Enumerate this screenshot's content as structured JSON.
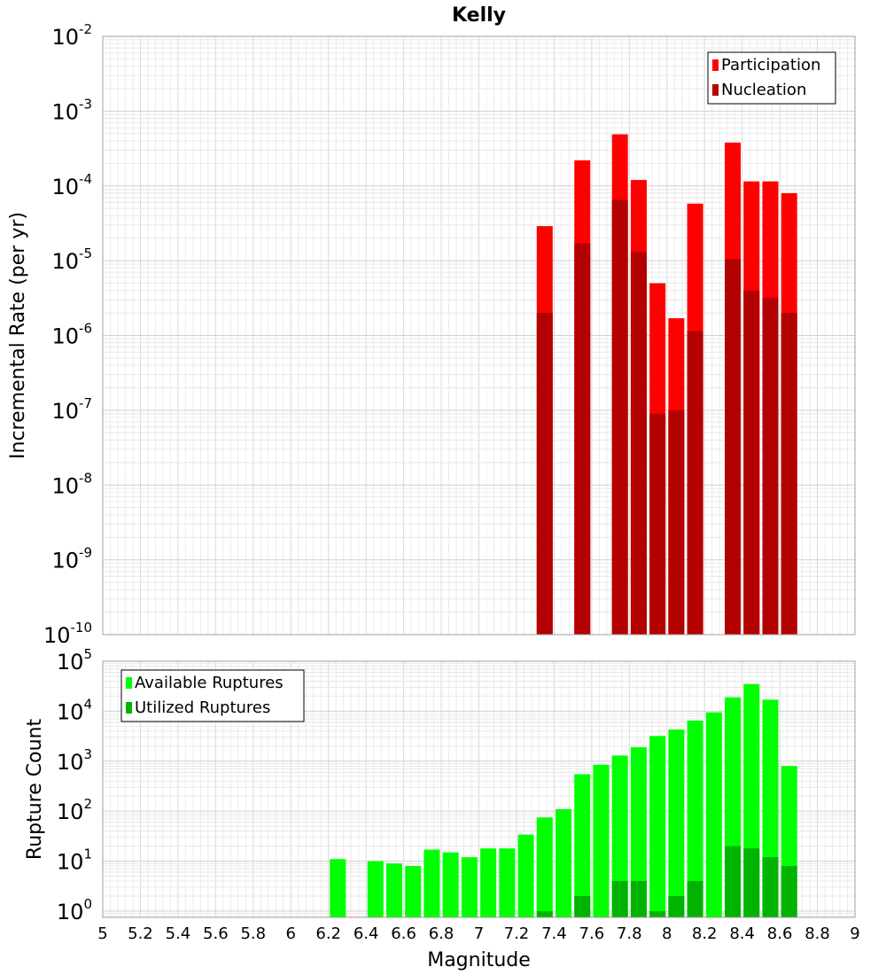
{
  "chart_data": [
    {
      "type": "bar",
      "title": "Kelly",
      "xlabel": "Magnitude",
      "ylabel": "Incremental Rate (per yr)",
      "yscale": "log",
      "ylim": [
        1e-10,
        0.01
      ],
      "xlim": [
        5,
        9
      ],
      "legend_position": "top-right",
      "series": [
        {
          "name": "Participation",
          "color": "#ff0000",
          "points": [
            {
              "x": 7.35,
              "y": 2.9e-05
            },
            {
              "x": 7.55,
              "y": 0.00022
            },
            {
              "x": 7.75,
              "y": 0.00049
            },
            {
              "x": 7.85,
              "y": 0.00012
            },
            {
              "x": 7.95,
              "y": 5e-06
            },
            {
              "x": 8.05,
              "y": 1.7e-06
            },
            {
              "x": 8.15,
              "y": 5.8e-05
            },
            {
              "x": 8.35,
              "y": 0.00038
            },
            {
              "x": 8.45,
              "y": 0.000115
            },
            {
              "x": 8.55,
              "y": 0.000115
            },
            {
              "x": 8.65,
              "y": 8e-05
            }
          ]
        },
        {
          "name": "Nucleation",
          "color": "#b30000",
          "points": [
            {
              "x": 7.35,
              "y": 2e-06
            },
            {
              "x": 7.55,
              "y": 1.7e-05
            },
            {
              "x": 7.75,
              "y": 6.5e-05
            },
            {
              "x": 7.85,
              "y": 1.3e-05
            },
            {
              "x": 7.95,
              "y": 9e-08
            },
            {
              "x": 8.05,
              "y": 1e-07
            },
            {
              "x": 8.15,
              "y": 1.15e-06
            },
            {
              "x": 8.35,
              "y": 1.05e-05
            },
            {
              "x": 8.45,
              "y": 4e-06
            },
            {
              "x": 8.55,
              "y": 3.2e-06
            },
            {
              "x": 8.65,
              "y": 2e-06
            }
          ]
        }
      ]
    },
    {
      "type": "bar",
      "title": "",
      "xlabel": "Magnitude",
      "ylabel": "Rupture Count",
      "yscale": "log",
      "ylim": [
        0.75,
        100000.0
      ],
      "xlim": [
        5,
        9
      ],
      "x_ticks": [
        "5",
        "5.2",
        "5.4",
        "5.6",
        "5.8",
        "6",
        "6.2",
        "6.4",
        "6.6",
        "6.8",
        "7",
        "7.2",
        "7.4",
        "7.6",
        "7.8",
        "8",
        "8.2",
        "8.4",
        "8.6",
        "8.8",
        "9"
      ],
      "legend_position": "top-left",
      "series": [
        {
          "name": "Available Ruptures",
          "color": "#00ff00",
          "points": [
            {
              "x": 6.25,
              "y": 11
            },
            {
              "x": 6.45,
              "y": 10
            },
            {
              "x": 6.55,
              "y": 9
            },
            {
              "x": 6.65,
              "y": 8
            },
            {
              "x": 6.75,
              "y": 17
            },
            {
              "x": 6.85,
              "y": 15
            },
            {
              "x": 6.95,
              "y": 12
            },
            {
              "x": 7.05,
              "y": 18
            },
            {
              "x": 7.15,
              "y": 18
            },
            {
              "x": 7.25,
              "y": 34
            },
            {
              "x": 7.35,
              "y": 75
            },
            {
              "x": 7.45,
              "y": 110
            },
            {
              "x": 7.55,
              "y": 550
            },
            {
              "x": 7.65,
              "y": 850
            },
            {
              "x": 7.75,
              "y": 1300
            },
            {
              "x": 7.85,
              "y": 1900
            },
            {
              "x": 7.95,
              "y": 3200
            },
            {
              "x": 8.05,
              "y": 4300
            },
            {
              "x": 8.15,
              "y": 6500
            },
            {
              "x": 8.25,
              "y": 9500
            },
            {
              "x": 8.35,
              "y": 19000
            },
            {
              "x": 8.45,
              "y": 35000
            },
            {
              "x": 8.55,
              "y": 17000
            },
            {
              "x": 8.65,
              "y": 800
            }
          ]
        },
        {
          "name": "Utilized Ruptures",
          "color": "#00b300",
          "points": [
            {
              "x": 7.35,
              "y": 1
            },
            {
              "x": 7.55,
              "y": 2
            },
            {
              "x": 7.75,
              "y": 4
            },
            {
              "x": 7.85,
              "y": 4
            },
            {
              "x": 7.95,
              "y": 1
            },
            {
              "x": 8.05,
              "y": 2
            },
            {
              "x": 8.15,
              "y": 4
            },
            {
              "x": 8.35,
              "y": 20
            },
            {
              "x": 8.45,
              "y": 18
            },
            {
              "x": 8.55,
              "y": 12
            },
            {
              "x": 8.65,
              "y": 8
            }
          ]
        }
      ]
    }
  ]
}
